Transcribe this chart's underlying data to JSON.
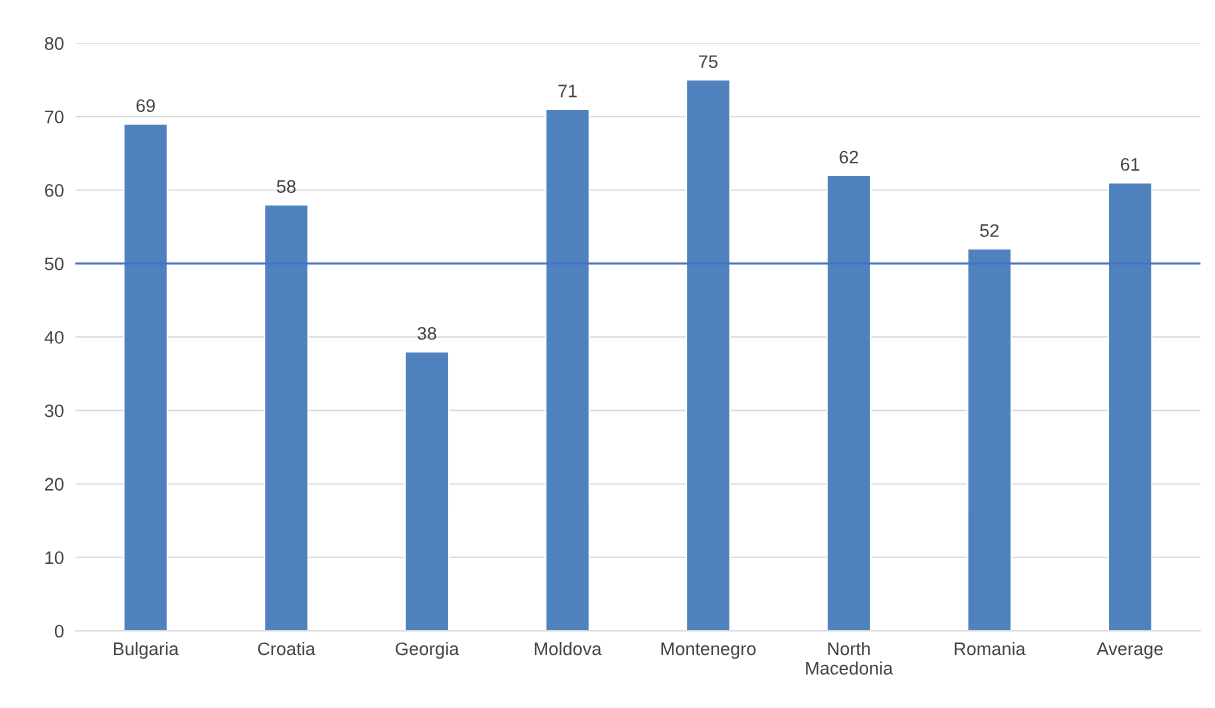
{
  "chart_data": {
    "type": "bar",
    "categories": [
      "Bulgaria",
      "Croatia",
      "Georgia",
      "Moldova",
      "Montenegro",
      "North\nMacedonia",
      "Romania",
      "Average"
    ],
    "values": [
      69,
      58,
      38,
      71,
      75,
      62,
      52,
      61
    ],
    "color": "#4f81bd",
    "ylim": [
      0,
      80
    ],
    "yticks": [
      0,
      10,
      20,
      30,
      40,
      50,
      60,
      70,
      80
    ],
    "grid": "y",
    "data_labels": true,
    "ref_lines": [
      {
        "axis": "y",
        "value": 50,
        "color": "#4472c4"
      }
    ]
  }
}
